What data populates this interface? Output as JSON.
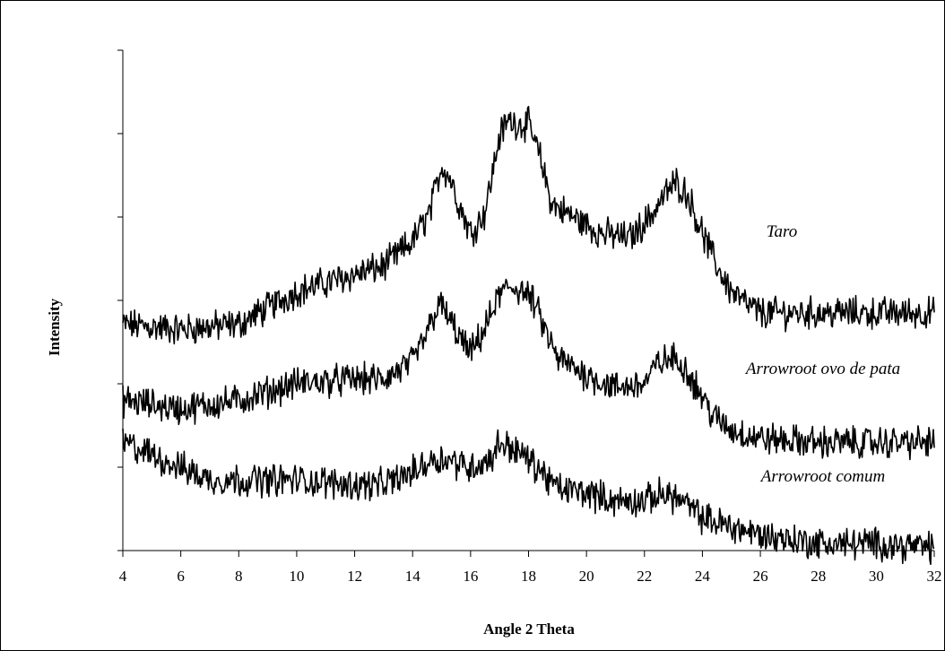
{
  "chart_data": {
    "type": "line",
    "title": "",
    "xlabel": "Angle 2 Theta",
    "ylabel": "Intensity",
    "xlim": [
      4,
      32
    ],
    "x_ticks": [
      4,
      6,
      8,
      10,
      12,
      14,
      16,
      18,
      20,
      22,
      24,
      26,
      28,
      30,
      32
    ],
    "y_tick_count": 6,
    "y_tick_labels_shown": false,
    "ylim": [
      0,
      100
    ],
    "grid": false,
    "legend": "none; series labeled inline next to each curve",
    "series": [
      {
        "name": "Taro",
        "color": "#000000",
        "x": [
          4,
          6,
          8,
          10,
          12,
          13,
          14,
          14.6,
          15.0,
          15.3,
          15.6,
          16.0,
          16.5,
          17.0,
          17.3,
          17.7,
          18.0,
          18.4,
          18.8,
          19.5,
          20.5,
          21.5,
          22.2,
          22.8,
          23.1,
          23.5,
          24.0,
          24.5,
          25.0,
          25.5,
          26,
          28,
          30,
          32
        ],
        "values": [
          45.2,
          44.2,
          45.2,
          51.8,
          55.2,
          56.8,
          61.8,
          67.7,
          77.0,
          74.4,
          69.3,
          63.4,
          67.7,
          82.9,
          86.0,
          85.2,
          85.2,
          78.5,
          69.3,
          66.8,
          63.4,
          62.5,
          66.8,
          71.9,
          73.6,
          71.1,
          63.4,
          56.8,
          51.8,
          49.3,
          47.5,
          47.5,
          47.5,
          47.5
        ]
      },
      {
        "name": "Arrowroot ovo de pata",
        "color": "#000000",
        "x": [
          4,
          6,
          8,
          10,
          12,
          13,
          14,
          14.5,
          14.9,
          15.2,
          15.6,
          16.0,
          16.5,
          17.0,
          17.4,
          17.8,
          18.2,
          18.6,
          19.0,
          20,
          21,
          22,
          22.5,
          23.0,
          23.4,
          23.9,
          24.4,
          25,
          26,
          28,
          30,
          32
        ],
        "values": [
          30.0,
          28.3,
          30.0,
          33.4,
          34.2,
          34.2,
          37.6,
          43.5,
          49.4,
          46.9,
          42.7,
          39.3,
          44.4,
          51.1,
          52.8,
          51.9,
          49.4,
          43.5,
          38.4,
          35.1,
          32.5,
          33.4,
          37.6,
          38.4,
          36.7,
          31.7,
          26.6,
          24.1,
          22.4,
          21.6,
          21.6,
          21.6
        ]
      },
      {
        "name": "Arrowroot comum",
        "color": "#000000",
        "x": [
          4,
          5,
          6,
          7,
          8,
          10,
          12,
          13,
          14,
          14.7,
          15.2,
          16.0,
          16.7,
          17.0,
          17.4,
          17.8,
          18.3,
          19.0,
          20,
          21,
          22,
          22.7,
          23.3,
          24,
          25,
          26,
          27,
          28,
          30,
          32
        ],
        "values": [
          21.6,
          19.1,
          16.6,
          14.1,
          14.1,
          14.1,
          13.2,
          13.2,
          15.7,
          18.3,
          18.3,
          16.6,
          18.3,
          21.6,
          20.7,
          19.1,
          16.6,
          12.4,
          11.6,
          9.9,
          9.9,
          11.6,
          9.9,
          6.5,
          4.8,
          3.1,
          2.3,
          1.4,
          1.4,
          0.6
        ]
      }
    ]
  }
}
